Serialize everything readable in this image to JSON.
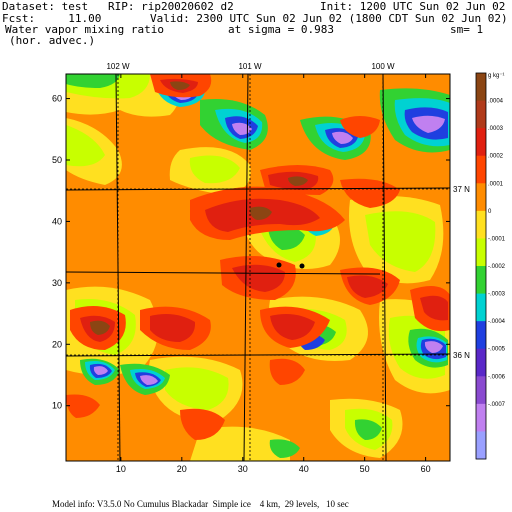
{
  "header": {
    "dataset": "Dataset: test   RIP: rip20020602 d2",
    "init": "Init: 1200 UTC Sun 02 Jun 02",
    "fcst": "Fcst:     11.00",
    "valid": "Valid: 2300 UTC Sun 02 Jun 02 (1800 CDT Sun 02 Jun 02)",
    "field": "Water vapor mixing ratio",
    "sigma": "at sigma = 0.983",
    "sm": "sm= 1",
    "field2": "(hor. advec.)"
  },
  "map": {
    "lon_labels": [
      "102 W",
      "101 W",
      "100 W"
    ],
    "lat_labels": [
      "37 N",
      "36 N"
    ],
    "x_ticks": [
      "10",
      "20",
      "30",
      "40",
      "50",
      "60"
    ],
    "y_ticks": [
      "10",
      "20",
      "30",
      "40",
      "50",
      "60"
    ],
    "x_range": [
      1,
      64
    ],
    "y_range": [
      1,
      64
    ]
  },
  "colorbar": {
    "unit": "g kg⁻¹",
    "labels": [
      ".0004",
      ".0003",
      ".0002",
      ".0001",
      "0",
      "-.0001",
      "-.0002",
      "-.0003",
      "-.0004",
      "-.0005",
      "-.0006",
      "-.0007"
    ],
    "colors": [
      "#8b4513",
      "#b03a1a",
      "#e02010",
      "#ff4500",
      "#ff8c00",
      "#ffe020",
      "#c8ff00",
      "#32d232",
      "#00d2d2",
      "#1f3fe0",
      "#5a28c8",
      "#8a4ad0",
      "#c080f0",
      "#9aa0ff"
    ]
  },
  "footer": {
    "model_info": "Model info: V3.5.0 No Cumulus Blackadar  Simple ice    4 km,  29 levels,   10 sec"
  }
}
